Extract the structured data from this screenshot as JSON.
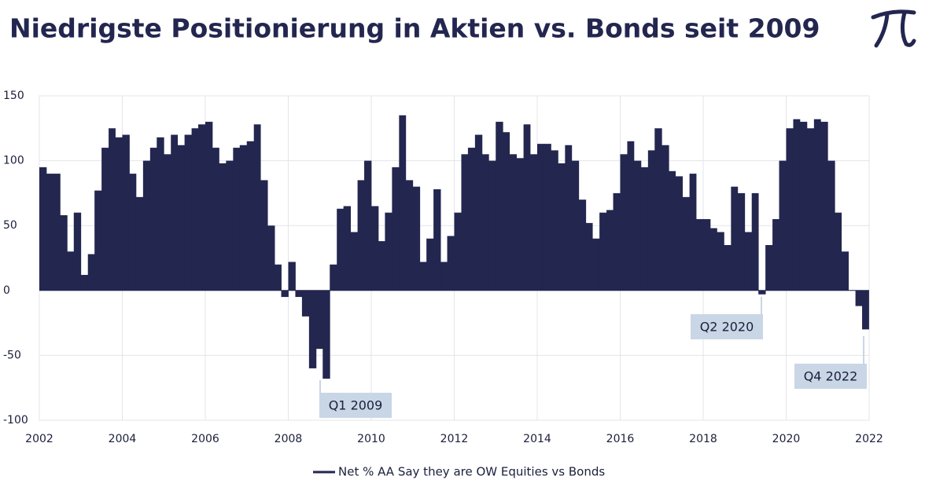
{
  "chart_data": {
    "type": "bar",
    "title": "Niedrigste Positionierung in Aktien vs. Bonds seit 2009",
    "color": "#23264f",
    "grid": true,
    "legend": "bottom",
    "annotations": [
      "Q1 2009",
      "Q2 2020",
      "Q4 2022"
    ],
    "xlim": [
      2002,
      2022
    ],
    "xticks": [
      2002,
      2004,
      2006,
      2008,
      2010,
      2012,
      2014,
      2016,
      2018,
      2020,
      2022
    ],
    "ylim": [
      -100,
      150
    ],
    "yticks": [
      150,
      100,
      50,
      0,
      -50,
      -100
    ],
    "x": [
      2002,
      2002.17,
      2002.33,
      2002.5,
      2002.67,
      2002.83,
      2003,
      2003.17,
      2003.33,
      2003.5,
      2003.67,
      2003.83,
      2004,
      2004.17,
      2004.33,
      2004.5,
      2004.67,
      2004.83,
      2005,
      2005.17,
      2005.33,
      2005.5,
      2005.67,
      2005.83,
      2006,
      2006.17,
      2006.33,
      2006.5,
      2006.67,
      2006.83,
      2007,
      2007.17,
      2007.33,
      2007.5,
      2007.67,
      2007.83,
      2008,
      2008.17,
      2008.33,
      2008.5,
      2008.67,
      2008.83,
      2009,
      2009.17,
      2009.33,
      2009.5,
      2009.67,
      2009.83,
      2010,
      2010.17,
      2010.33,
      2010.5,
      2010.67,
      2010.83,
      2011,
      2011.17,
      2011.33,
      2011.5,
      2011.67,
      2011.83,
      2012,
      2012.17,
      2012.33,
      2012.5,
      2012.67,
      2012.83,
      2013,
      2013.17,
      2013.33,
      2013.5,
      2013.67,
      2013.83,
      2014,
      2014.17,
      2014.33,
      2014.5,
      2014.67,
      2014.83,
      2015,
      2015.17,
      2015.33,
      2015.5,
      2015.67,
      2015.83,
      2016,
      2016.17,
      2016.33,
      2016.5,
      2016.67,
      2016.83,
      2017,
      2017.17,
      2017.33,
      2017.5,
      2017.67,
      2017.83,
      2018,
      2018.17,
      2018.33,
      2018.5,
      2018.67,
      2018.83,
      2019,
      2019.17,
      2019.33,
      2019.5,
      2019.67,
      2019.83,
      2020,
      2020.17,
      2020.33,
      2020.5,
      2020.67,
      2020.83,
      2021,
      2021.17,
      2021.33,
      2021.5,
      2021.67,
      2021.83
    ],
    "series": [
      {
        "name": "Net % AA Say they are OW Equities vs Bonds",
        "color": "#23264f",
        "values": [
          95,
          90,
          90,
          58,
          30,
          60,
          12,
          28,
          77,
          110,
          125,
          118,
          120,
          90,
          72,
          100,
          110,
          118,
          105,
          120,
          112,
          120,
          125,
          128,
          130,
          110,
          98,
          100,
          110,
          112,
          115,
          128,
          85,
          50,
          20,
          -5,
          22,
          -5,
          -20,
          -60,
          -45,
          -68,
          20,
          63,
          65,
          45,
          85,
          100,
          65,
          38,
          60,
          95,
          135,
          85,
          80,
          22,
          40,
          78,
          22,
          42,
          60,
          105,
          110,
          120,
          105,
          100,
          130,
          122,
          105,
          102,
          128,
          105,
          113,
          113,
          108,
          98,
          112,
          100,
          70,
          52,
          40,
          60,
          62,
          75,
          105,
          115,
          100,
          95,
          108,
          125,
          112,
          92,
          88,
          72,
          90,
          55,
          55,
          48,
          45,
          35,
          80,
          75,
          45,
          75,
          -3,
          35,
          55,
          100,
          125,
          132,
          130,
          125,
          132,
          130,
          100,
          60,
          30,
          0,
          -12,
          -30
        ]
      }
    ]
  }
}
